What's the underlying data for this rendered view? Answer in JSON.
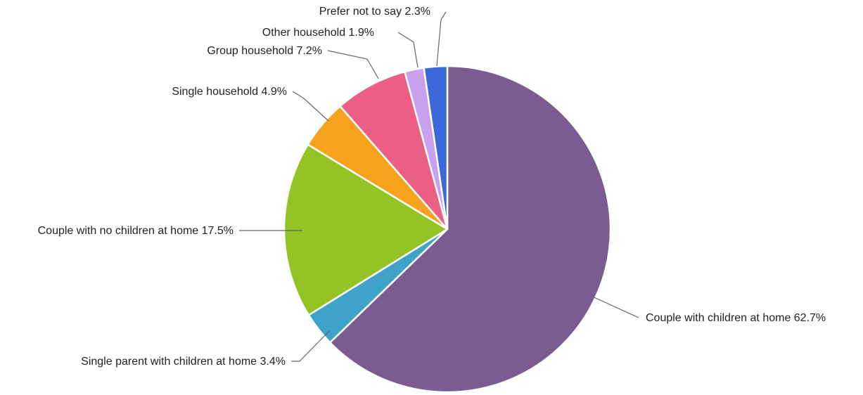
{
  "chart_data": {
    "type": "pie",
    "title": "",
    "start_angle_deg": 0,
    "direction": "clockwise",
    "slices": [
      {
        "label": "Couple with children at home 62.7%",
        "value": 62.7,
        "color": "#7B5C92"
      },
      {
        "label": "Single parent with children at home 3.4%",
        "value": 3.4,
        "color": "#3FA2C8"
      },
      {
        "label": "Couple with no children at home 17.5%",
        "value": 17.5,
        "color": "#93C324"
      },
      {
        "label": "Single household 4.9%",
        "value": 4.9,
        "color": "#F6A21C"
      },
      {
        "label": "Group household 7.2%",
        "value": 7.2,
        "color": "#EC5F85"
      },
      {
        "label": "Other household 1.9%",
        "value": 1.9,
        "color": "#C9A0EE"
      },
      {
        "label": "Prefer not to say 2.3%",
        "value": 2.3,
        "color": "#3B69DC"
      }
    ]
  }
}
